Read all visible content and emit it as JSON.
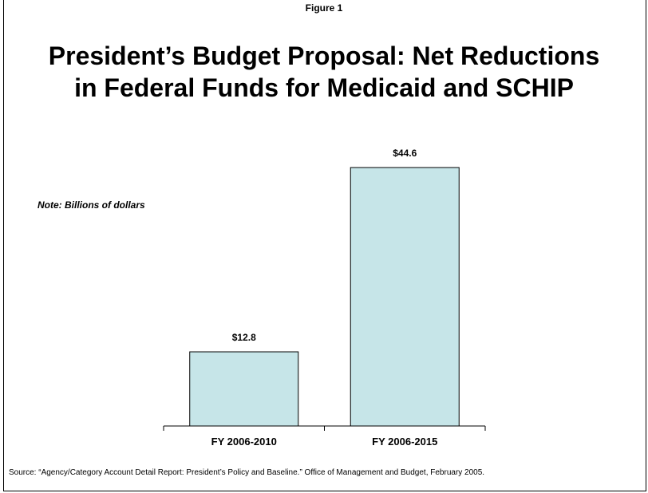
{
  "figure_label": "Figure 1",
  "title_line1": "President’s Budget Proposal: Net Reductions",
  "title_line2": "in Federal Funds for Medicaid and SCHIP",
  "note": "Note: Billions of dollars",
  "source": "Source: “Agency/Category Account Detail Report: President’s Policy and Baseline.” Office of Management and Budget, February 2005.",
  "colors": {
    "bar_fill": "#c6e5e8",
    "bar_stroke": "#000000"
  },
  "chart_data": {
    "type": "bar",
    "categories": [
      "FY 2006-2010",
      "FY 2006-2015"
    ],
    "values": [
      12.8,
      44.6
    ],
    "data_labels": [
      "$12.8",
      "$44.6"
    ],
    "title": "President’s Budget Proposal: Net Reductions in Federal Funds for Medicaid and SCHIP",
    "xlabel": "",
    "ylabel": "",
    "ylim": [
      0,
      44.6
    ],
    "grid": false,
    "legend": "none"
  }
}
